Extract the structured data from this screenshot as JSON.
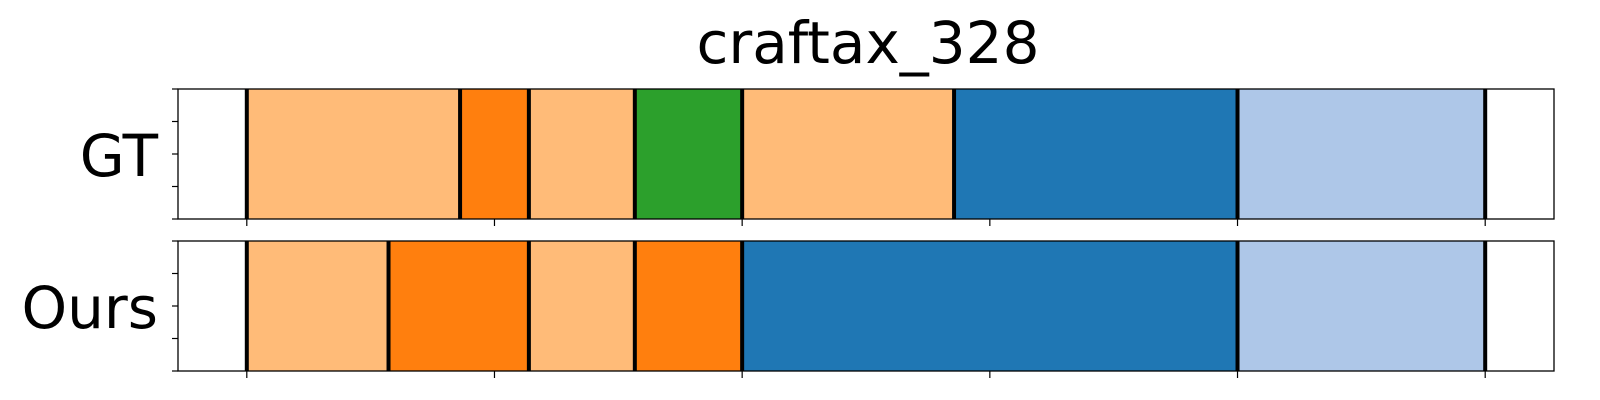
{
  "chart_data": {
    "type": "segmentation-timeline",
    "title": "craftax_328",
    "xlim": [
      0,
      100
    ],
    "x_ticks": [
      5,
      23,
      41,
      59,
      77,
      95
    ],
    "rows": [
      {
        "label": "GT",
        "segments": [
          {
            "start": 5,
            "end": 20.5,
            "color": "#ffbb78"
          },
          {
            "start": 20.5,
            "end": 25.5,
            "color": "#ff7f0e"
          },
          {
            "start": 25.5,
            "end": 33.2,
            "color": "#ffbb78"
          },
          {
            "start": 33.2,
            "end": 41,
            "color": "#2ca02c"
          },
          {
            "start": 41,
            "end": 56.4,
            "color": "#ffbb78"
          },
          {
            "start": 56.4,
            "end": 77,
            "color": "#1f77b4"
          },
          {
            "start": 77,
            "end": 95,
            "color": "#aec7e8"
          }
        ]
      },
      {
        "label": "Ours",
        "segments": [
          {
            "start": 5,
            "end": 15.3,
            "color": "#ffbb78"
          },
          {
            "start": 15.3,
            "end": 25.5,
            "color": "#ff7f0e"
          },
          {
            "start": 25.5,
            "end": 33.2,
            "color": "#ffbb78"
          },
          {
            "start": 33.2,
            "end": 41,
            "color": "#ff7f0e"
          },
          {
            "start": 41,
            "end": 77,
            "color": "#1f77b4"
          },
          {
            "start": 77,
            "end": 95,
            "color": "#aec7e8"
          }
        ]
      }
    ]
  }
}
